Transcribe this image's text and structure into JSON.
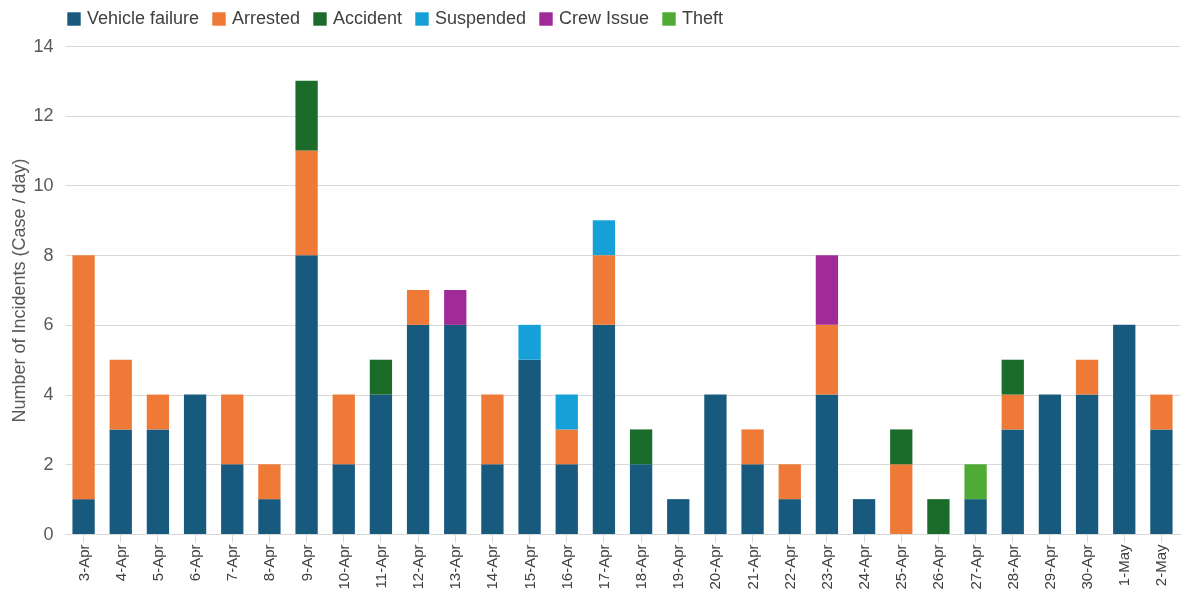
{
  "chart_data": {
    "type": "bar",
    "stacked": true,
    "ylabel": "Number of Incidents (Case / day)",
    "categories": [
      "3-Apr",
      "4-Apr",
      "5-Apr",
      "6-Apr",
      "7-Apr",
      "8-Apr",
      "9-Apr",
      "10-Apr",
      "11-Apr",
      "12-Apr",
      "13-Apr",
      "14-Apr",
      "15-Apr",
      "16-Apr",
      "17-Apr",
      "18-Apr",
      "19-Apr",
      "20-Apr",
      "21-Apr",
      "22-Apr",
      "23-Apr",
      "24-Apr",
      "25-Apr",
      "26-Apr",
      "27-Apr",
      "28-Apr",
      "29-Apr",
      "30-Apr",
      "1-May",
      "2-May"
    ],
    "series": [
      {
        "name": "Vehicle failure",
        "color": "#175a7e",
        "values": [
          1,
          3,
          3,
          4,
          2,
          1,
          8,
          2,
          4,
          6,
          6,
          2,
          5,
          2,
          6,
          2,
          1,
          4,
          2,
          1,
          4,
          1,
          null,
          null,
          1,
          3,
          4,
          4,
          6,
          3
        ]
      },
      {
        "name": "Arrested",
        "color": "#ef7a37",
        "values": [
          7,
          2,
          1,
          null,
          2,
          1,
          3,
          2,
          null,
          1,
          null,
          2,
          null,
          1,
          2,
          null,
          null,
          null,
          1,
          1,
          2,
          null,
          2,
          null,
          null,
          1,
          null,
          1,
          null,
          1
        ]
      },
      {
        "name": "Accident",
        "color": "#1b6b2b",
        "values": [
          null,
          null,
          null,
          null,
          null,
          null,
          2,
          null,
          1,
          null,
          null,
          null,
          null,
          null,
          null,
          1,
          null,
          null,
          null,
          null,
          null,
          null,
          1,
          1,
          null,
          1,
          null,
          null,
          null,
          null
        ]
      },
      {
        "name": "Suspended",
        "color": "#16a0d8",
        "values": [
          null,
          null,
          null,
          null,
          null,
          null,
          null,
          null,
          null,
          null,
          null,
          null,
          1,
          1,
          1,
          null,
          null,
          null,
          null,
          null,
          null,
          null,
          null,
          null,
          null,
          null,
          null,
          null,
          null,
          null
        ]
      },
      {
        "name": "Crew Issue",
        "color": "#a02a98",
        "values": [
          null,
          null,
          null,
          null,
          null,
          null,
          null,
          null,
          null,
          null,
          1,
          null,
          null,
          null,
          null,
          null,
          null,
          null,
          null,
          null,
          2,
          null,
          null,
          null,
          null,
          null,
          null,
          null,
          null,
          null
        ]
      },
      {
        "name": "Theft",
        "color": "#4fab35",
        "values": [
          null,
          null,
          null,
          null,
          null,
          null,
          null,
          null,
          null,
          null,
          null,
          null,
          null,
          null,
          null,
          null,
          null,
          null,
          null,
          null,
          null,
          null,
          null,
          null,
          1,
          null,
          null,
          null,
          null,
          null
        ]
      }
    ],
    "ylim": [
      0,
      14
    ],
    "yticks": [
      0,
      2,
      4,
      6,
      8,
      10,
      12,
      14
    ],
    "grid": "y",
    "legend": "top"
  }
}
